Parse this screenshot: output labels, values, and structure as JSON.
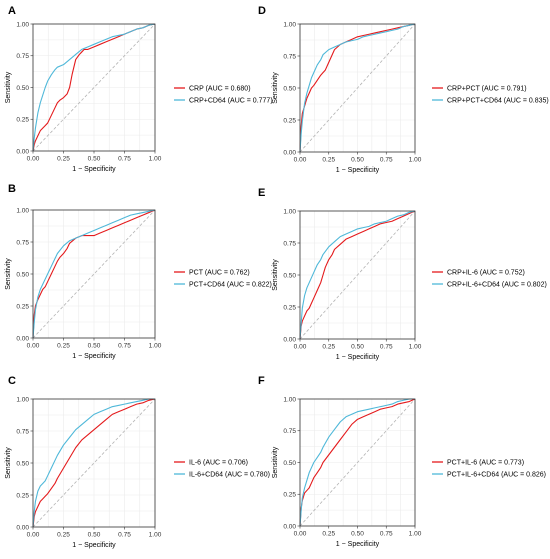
{
  "colors": {
    "red": "#e41a1c",
    "blue": "#4fb8d9",
    "diagonal": "#b3b3b3"
  },
  "chart_data": [
    {
      "panel": "A",
      "type": "line",
      "xlabel": "1 − Specificity",
      "ylabel": "Sensitivity",
      "xlim": [
        0,
        1
      ],
      "ylim": [
        0,
        1
      ],
      "xticks": [
        "0.00",
        "0.25",
        "0.50",
        "0.75",
        "1.00"
      ],
      "yticks": [
        "0.00",
        "0.25",
        "0.50",
        "0.75",
        "1.00"
      ],
      "legend_position": "right",
      "series": [
        {
          "name": "CRP (AUC = 0.680)",
          "color": "red",
          "x": [
            0,
            0.01,
            0.02,
            0.04,
            0.06,
            0.08,
            0.1,
            0.12,
            0.15,
            0.18,
            0.2,
            0.22,
            0.25,
            0.28,
            0.3,
            0.32,
            0.35,
            0.38,
            0.4,
            0.42,
            0.45,
            0.5,
            0.55,
            0.6,
            0.65,
            0.7,
            0.75,
            0.8,
            0.85,
            0.9,
            0.95,
            1
          ],
          "y": [
            0,
            0.05,
            0.08,
            0.12,
            0.16,
            0.18,
            0.2,
            0.22,
            0.28,
            0.34,
            0.38,
            0.4,
            0.42,
            0.45,
            0.5,
            0.6,
            0.72,
            0.76,
            0.78,
            0.8,
            0.8,
            0.82,
            0.84,
            0.86,
            0.88,
            0.9,
            0.92,
            0.94,
            0.96,
            0.97,
            0.99,
            1
          ]
        },
        {
          "name": "CRP+CD64 (AUC = 0.777)",
          "color": "blue",
          "x": [
            0,
            0.01,
            0.02,
            0.04,
            0.06,
            0.08,
            0.1,
            0.12,
            0.15,
            0.18,
            0.2,
            0.25,
            0.3,
            0.35,
            0.4,
            0.45,
            0.5,
            0.55,
            0.6,
            0.65,
            0.7,
            0.75,
            0.8,
            0.85,
            0.9,
            0.95,
            1
          ],
          "y": [
            0,
            0.1,
            0.18,
            0.3,
            0.38,
            0.44,
            0.5,
            0.55,
            0.6,
            0.64,
            0.66,
            0.68,
            0.72,
            0.76,
            0.8,
            0.82,
            0.84,
            0.86,
            0.88,
            0.9,
            0.91,
            0.92,
            0.94,
            0.96,
            0.97,
            0.99,
            1
          ]
        }
      ]
    },
    {
      "panel": "B",
      "type": "line",
      "xlabel": "1 − Specificity",
      "ylabel": "Sensitivity",
      "xlim": [
        0,
        1
      ],
      "ylim": [
        0,
        1
      ],
      "xticks": [
        "0.00",
        "0.25",
        "0.50",
        "0.75",
        "1.00"
      ],
      "yticks": [
        "0.00",
        "0.25",
        "0.50",
        "0.75",
        "1.00"
      ],
      "legend_position": "right",
      "series": [
        {
          "name": "PCT (AUC = 0.762)",
          "color": "red",
          "x": [
            0,
            0.01,
            0.02,
            0.04,
            0.06,
            0.08,
            0.1,
            0.12,
            0.15,
            0.18,
            0.2,
            0.22,
            0.25,
            0.28,
            0.3,
            0.35,
            0.4,
            0.45,
            0.5,
            0.55,
            0.6,
            0.65,
            0.7,
            0.75,
            0.8,
            0.85,
            0.9,
            0.95,
            1
          ],
          "y": [
            0,
            0.18,
            0.25,
            0.3,
            0.34,
            0.38,
            0.4,
            0.44,
            0.5,
            0.56,
            0.6,
            0.63,
            0.66,
            0.7,
            0.74,
            0.78,
            0.8,
            0.8,
            0.8,
            0.82,
            0.84,
            0.86,
            0.88,
            0.9,
            0.92,
            0.94,
            0.96,
            0.98,
            1
          ]
        },
        {
          "name": "PCT+CD64 (AUC = 0.822)",
          "color": "blue",
          "x": [
            0,
            0.01,
            0.02,
            0.04,
            0.06,
            0.08,
            0.1,
            0.12,
            0.15,
            0.18,
            0.2,
            0.25,
            0.3,
            0.35,
            0.4,
            0.45,
            0.5,
            0.55,
            0.6,
            0.65,
            0.7,
            0.75,
            0.8,
            0.85,
            0.9,
            0.95,
            1
          ],
          "y": [
            0,
            0.12,
            0.22,
            0.32,
            0.38,
            0.42,
            0.46,
            0.5,
            0.56,
            0.62,
            0.66,
            0.72,
            0.76,
            0.78,
            0.8,
            0.82,
            0.84,
            0.86,
            0.88,
            0.9,
            0.92,
            0.94,
            0.96,
            0.97,
            0.98,
            0.99,
            1
          ]
        }
      ]
    },
    {
      "panel": "C",
      "type": "line",
      "xlabel": "1 − Specificity",
      "ylabel": "Sensitivity",
      "xlim": [
        0,
        1
      ],
      "ylim": [
        0,
        1
      ],
      "xticks": [
        "0.00",
        "0.25",
        "0.50",
        "0.75",
        "1.00"
      ],
      "yticks": [
        "0.00",
        "0.25",
        "0.50",
        "0.75",
        "1.00"
      ],
      "legend_position": "right",
      "series": [
        {
          "name": "IL-6 (AUC = 0.706)",
          "color": "red",
          "x": [
            0,
            0.01,
            0.02,
            0.04,
            0.06,
            0.08,
            0.1,
            0.12,
            0.15,
            0.18,
            0.2,
            0.25,
            0.3,
            0.35,
            0.4,
            0.45,
            0.5,
            0.55,
            0.6,
            0.65,
            0.7,
            0.75,
            0.8,
            0.85,
            0.9,
            0.95,
            1
          ],
          "y": [
            0,
            0.08,
            0.12,
            0.16,
            0.2,
            0.22,
            0.24,
            0.26,
            0.3,
            0.34,
            0.38,
            0.46,
            0.54,
            0.62,
            0.68,
            0.72,
            0.76,
            0.8,
            0.84,
            0.88,
            0.9,
            0.92,
            0.94,
            0.96,
            0.97,
            0.99,
            1
          ]
        },
        {
          "name": "IL-6+CD64 (AUC = 0.780)",
          "color": "blue",
          "x": [
            0,
            0.01,
            0.02,
            0.04,
            0.06,
            0.08,
            0.1,
            0.12,
            0.15,
            0.18,
            0.2,
            0.25,
            0.3,
            0.35,
            0.4,
            0.45,
            0.5,
            0.55,
            0.6,
            0.65,
            0.7,
            0.75,
            0.8,
            0.85,
            0.9,
            0.95,
            1
          ],
          "y": [
            0,
            0.12,
            0.2,
            0.28,
            0.32,
            0.34,
            0.36,
            0.4,
            0.46,
            0.52,
            0.56,
            0.64,
            0.7,
            0.76,
            0.8,
            0.84,
            0.88,
            0.9,
            0.92,
            0.94,
            0.95,
            0.96,
            0.97,
            0.98,
            0.99,
            1,
            1
          ]
        }
      ]
    },
    {
      "panel": "D",
      "type": "line",
      "xlabel": "1 − Specificity",
      "ylabel": "Sensitivity",
      "xlim": [
        0,
        1
      ],
      "ylim": [
        0,
        1
      ],
      "xticks": [
        "0.00",
        "0.25",
        "0.50",
        "0.75",
        "1.00"
      ],
      "yticks": [
        "0.00",
        "0.25",
        "0.50",
        "0.75",
        "1.00"
      ],
      "legend_position": "right",
      "series": [
        {
          "name": "CRP+PCT (AUC = 0.791)",
          "color": "red",
          "x": [
            0,
            0.01,
            0.02,
            0.04,
            0.06,
            0.08,
            0.1,
            0.12,
            0.15,
            0.18,
            0.2,
            0.22,
            0.25,
            0.28,
            0.3,
            0.35,
            0.4,
            0.45,
            0.5,
            0.55,
            0.6,
            0.65,
            0.7,
            0.75,
            0.8,
            0.85,
            0.9,
            0.95,
            1
          ],
          "y": [
            0,
            0.2,
            0.3,
            0.36,
            0.42,
            0.46,
            0.5,
            0.52,
            0.56,
            0.6,
            0.62,
            0.64,
            0.7,
            0.76,
            0.8,
            0.84,
            0.86,
            0.88,
            0.9,
            0.91,
            0.92,
            0.93,
            0.94,
            0.95,
            0.96,
            0.97,
            0.98,
            0.99,
            1
          ]
        },
        {
          "name": "CRP+PCT+CD64 (AUC = 0.835)",
          "color": "blue",
          "x": [
            0,
            0.01,
            0.02,
            0.04,
            0.06,
            0.08,
            0.1,
            0.12,
            0.15,
            0.18,
            0.2,
            0.25,
            0.3,
            0.35,
            0.4,
            0.45,
            0.5,
            0.55,
            0.6,
            0.65,
            0.7,
            0.75,
            0.8,
            0.85,
            0.9,
            0.95,
            1
          ],
          "y": [
            0,
            0.14,
            0.24,
            0.38,
            0.46,
            0.52,
            0.58,
            0.62,
            0.68,
            0.72,
            0.76,
            0.8,
            0.82,
            0.84,
            0.86,
            0.87,
            0.88,
            0.9,
            0.91,
            0.92,
            0.93,
            0.94,
            0.95,
            0.96,
            0.98,
            0.99,
            1
          ]
        }
      ]
    },
    {
      "panel": "E",
      "type": "line",
      "xlabel": "1 − Specificity",
      "ylabel": "Sensitivity",
      "xlim": [
        0,
        1
      ],
      "ylim": [
        0,
        1
      ],
      "xticks": [
        "0.00",
        "0.25",
        "0.50",
        "0.75",
        "1.00"
      ],
      "yticks": [
        "0.00",
        "0.25",
        "0.50",
        "0.75",
        "1.00"
      ],
      "legend_position": "right",
      "series": [
        {
          "name": "CRP+IL-6 (AUC = 0.752)",
          "color": "red",
          "x": [
            0,
            0.01,
            0.02,
            0.04,
            0.06,
            0.08,
            0.1,
            0.12,
            0.15,
            0.18,
            0.2,
            0.22,
            0.25,
            0.28,
            0.3,
            0.35,
            0.4,
            0.45,
            0.5,
            0.55,
            0.6,
            0.65,
            0.7,
            0.75,
            0.8,
            0.85,
            0.9,
            0.95,
            1
          ],
          "y": [
            0,
            0.1,
            0.14,
            0.18,
            0.22,
            0.24,
            0.28,
            0.32,
            0.38,
            0.44,
            0.5,
            0.56,
            0.62,
            0.66,
            0.7,
            0.74,
            0.78,
            0.8,
            0.82,
            0.84,
            0.86,
            0.88,
            0.9,
            0.91,
            0.92,
            0.94,
            0.96,
            0.98,
            1
          ]
        },
        {
          "name": "CRP+IL-6+CD64 (AUC = 0.802)",
          "color": "blue",
          "x": [
            0,
            0.01,
            0.02,
            0.04,
            0.06,
            0.08,
            0.1,
            0.12,
            0.15,
            0.18,
            0.2,
            0.25,
            0.3,
            0.35,
            0.4,
            0.45,
            0.5,
            0.55,
            0.6,
            0.65,
            0.7,
            0.75,
            0.8,
            0.85,
            0.9,
            0.95,
            1
          ],
          "y": [
            0,
            0.12,
            0.24,
            0.34,
            0.4,
            0.44,
            0.48,
            0.52,
            0.58,
            0.62,
            0.66,
            0.72,
            0.76,
            0.8,
            0.82,
            0.84,
            0.86,
            0.87,
            0.88,
            0.9,
            0.91,
            0.92,
            0.94,
            0.96,
            0.97,
            0.99,
            1
          ]
        }
      ]
    },
    {
      "panel": "F",
      "type": "line",
      "xlabel": "1 − Specificity",
      "ylabel": "Sensitivity",
      "xlim": [
        0,
        1
      ],
      "ylim": [
        0,
        1
      ],
      "xticks": [
        "0.00",
        "0.25",
        "0.50",
        "0.75",
        "1.00"
      ],
      "yticks": [
        "0.00",
        "0.25",
        "0.50",
        "0.75",
        "1.00"
      ],
      "legend_position": "right",
      "series": [
        {
          "name": "PCT+IL-6 (AUC = 0.773)",
          "color": "red",
          "x": [
            0,
            0.01,
            0.02,
            0.04,
            0.06,
            0.08,
            0.1,
            0.12,
            0.15,
            0.18,
            0.2,
            0.25,
            0.3,
            0.35,
            0.4,
            0.45,
            0.5,
            0.55,
            0.6,
            0.65,
            0.7,
            0.75,
            0.8,
            0.85,
            0.9,
            0.95,
            1
          ],
          "y": [
            0,
            0.14,
            0.2,
            0.26,
            0.28,
            0.3,
            0.34,
            0.38,
            0.42,
            0.46,
            0.5,
            0.56,
            0.62,
            0.68,
            0.74,
            0.8,
            0.84,
            0.86,
            0.88,
            0.9,
            0.92,
            0.93,
            0.94,
            0.96,
            0.97,
            0.98,
            1
          ]
        },
        {
          "name": "PCT+IL-6+CD64 (AUC = 0.826)",
          "color": "blue",
          "x": [
            0,
            0.01,
            0.02,
            0.04,
            0.06,
            0.08,
            0.1,
            0.12,
            0.15,
            0.18,
            0.2,
            0.25,
            0.3,
            0.35,
            0.4,
            0.45,
            0.5,
            0.55,
            0.6,
            0.65,
            0.7,
            0.75,
            0.8,
            0.85,
            0.9,
            0.95,
            1
          ],
          "y": [
            0,
            0.12,
            0.22,
            0.3,
            0.36,
            0.42,
            0.46,
            0.5,
            0.54,
            0.58,
            0.62,
            0.7,
            0.76,
            0.82,
            0.86,
            0.88,
            0.9,
            0.91,
            0.92,
            0.93,
            0.94,
            0.95,
            0.96,
            0.98,
            0.99,
            1,
            1
          ]
        }
      ]
    }
  ]
}
